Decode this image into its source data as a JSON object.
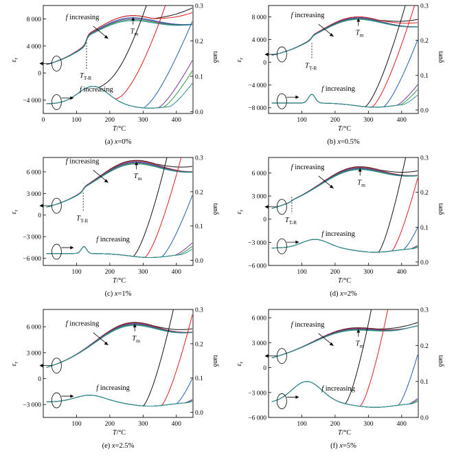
{
  "figure": {
    "y_left_symbol": "ε",
    "y_left_subscript": "r",
    "y_right_label": "tanδ",
    "x_label_var": "T",
    "x_label_unit": "/°C",
    "increasing_text": "increasing",
    "increasing_var": "f",
    "tm_main": "T",
    "tm_sub": "m",
    "ttr_main": "T",
    "ttr_sub": "T-R"
  },
  "chart_data": [
    {
      "type": "line",
      "panel_label": "(a) ",
      "caption_var": "x",
      "caption_value": "=0%",
      "xlim": [
        0,
        450
      ],
      "xticks": [
        0,
        100,
        200,
        300,
        400
      ],
      "xtick_labels": [
        "0",
        "100",
        "200",
        "300",
        "400"
      ],
      "ylim_left": [
        -6000,
        10000
      ],
      "yticks_left": [
        -4000,
        0,
        4000,
        8000
      ],
      "ytick_labels_left": [
        "−4 000",
        "0",
        "4 000",
        "8 000"
      ],
      "ylim_right": [
        -0.005,
        0.3
      ],
      "yticks_right": [
        0.0,
        0.1,
        0.2,
        0.3
      ],
      "ytick_labels_right": [
        "0.0",
        "0.1",
        "0.2",
        "0.3"
      ],
      "t_tr": 130,
      "t_m": 270,
      "eps_base": 1000,
      "eps_step": 2000,
      "eps_peak": 8500,
      "eps_end": 5000,
      "tan_base": 0.022,
      "tan_bump": 0.05,
      "tan_bump_at": 150,
      "tan_bump_w": 45,
      "eps_series": [
        {
          "name": "",
          "color": "#111111",
          "peak_shift": 0,
          "tail_rise": 600
        },
        {
          "name": "",
          "color": "#e31a1c",
          "peak_shift": 0,
          "tail_rise": 420
        },
        {
          "name": "",
          "color": "#1f5fae",
          "peak_shift": -300,
          "tail_rise": 0
        },
        {
          "name": "",
          "color": "#7b2f9b",
          "peak_shift": -450,
          "tail_rise": 0
        },
        {
          "name": "",
          "color": "#2e9a3f",
          "peak_shift": -600,
          "tail_rise": 0
        },
        {
          "name": "",
          "color": "#2a8f96",
          "peak_shift": -750,
          "tail_rise": 0
        }
      ],
      "tan_series": [
        {
          "name": "",
          "color": "#111111",
          "rise_at": 165,
          "rise_rate": 0.0028
        },
        {
          "name": "",
          "color": "#e31a1c",
          "rise_at": 215,
          "rise_rate": 0.0026
        },
        {
          "name": "",
          "color": "#1f5fae",
          "rise_at": 300,
          "rise_rate": 0.0022
        },
        {
          "name": "",
          "color": "#7b2f9b",
          "rise_at": 345,
          "rise_rate": 0.0019
        },
        {
          "name": "",
          "color": "#2e9a3f",
          "rise_at": 360,
          "rise_rate": 0.0018
        },
        {
          "name": "",
          "color": "#2a8f96",
          "rise_at": 380,
          "rise_rate": 0.0016
        }
      ]
    },
    {
      "type": "line",
      "panel_label": "(b) ",
      "caption_var": "x",
      "caption_value": "=0.5%",
      "xlim": [
        0,
        450
      ],
      "xticks": [
        100,
        200,
        300,
        400
      ],
      "xtick_labels": [
        "100",
        "200",
        "300",
        "400"
      ],
      "ylim_left": [
        -9000,
        10000
      ],
      "yticks_left": [
        -8000,
        -4000,
        0,
        4000,
        8000
      ],
      "ytick_labels_left": [
        "−8 000",
        "−4 000",
        "0",
        "4 000",
        "8 000"
      ],
      "ylim_right": [
        -0.01,
        0.3
      ],
      "yticks_right": [
        0.0,
        0.1,
        0.2,
        0.3
      ],
      "ytick_labels_right": [
        "0.0",
        "0.1",
        "0.2",
        "0.3"
      ],
      "t_tr": 130,
      "t_m": 270,
      "eps_base": 1000,
      "eps_step": 900,
      "eps_peak": 8000,
      "eps_end": 3300,
      "tan_base": 0.02,
      "tan_bump": 0.025,
      "tan_bump_at": 130,
      "tan_bump_w": 10,
      "eps_series": [
        {
          "name": "",
          "color": "#111111",
          "peak_shift": 0,
          "tail_rise": 320
        },
        {
          "name": "",
          "color": "#e31a1c",
          "peak_shift": 0,
          "tail_rise": 180
        },
        {
          "name": "",
          "color": "#1f5fae",
          "peak_shift": -150,
          "tail_rise": 0
        },
        {
          "name": "",
          "color": "#7b2f9b",
          "peak_shift": -250,
          "tail_rise": 0
        },
        {
          "name": "",
          "color": "#2e9a3f",
          "peak_shift": -350,
          "tail_rise": 0
        },
        {
          "name": "",
          "color": "#2a8f96",
          "peak_shift": -450,
          "tail_rise": 0
        }
      ],
      "tan_series": [
        {
          "name": "",
          "color": "#111111",
          "rise_at": 290,
          "rise_rate": 0.0035
        },
        {
          "name": "",
          "color": "#e31a1c",
          "rise_at": 310,
          "rise_rate": 0.0032
        },
        {
          "name": "",
          "color": "#1f5fae",
          "rise_at": 345,
          "rise_rate": 0.0028
        },
        {
          "name": "",
          "color": "#7b2f9b",
          "rise_at": 385,
          "rise_rate": 0.0016
        },
        {
          "name": "",
          "color": "#2e9a3f",
          "rise_at": 395,
          "rise_rate": 0.0015
        },
        {
          "name": "",
          "color": "#2a8f96",
          "rise_at": 405,
          "rise_rate": 0.0012
        }
      ]
    },
    {
      "type": "line",
      "panel_label": "(c) ",
      "caption_var": "x",
      "caption_value": "=1%",
      "xlim": [
        0,
        450
      ],
      "xticks": [
        100,
        200,
        300,
        400
      ],
      "xtick_labels": [
        "100",
        "200",
        "300",
        "400"
      ],
      "ylim_left": [
        -7000,
        8000
      ],
      "yticks_left": [
        -6000,
        -3000,
        0,
        3000,
        6000
      ],
      "ytick_labels_left": [
        "−6 000",
        "−3 000",
        "0",
        "3 000",
        "6 000"
      ],
      "ylim_right": [
        -0.015,
        0.3
      ],
      "yticks_right": [
        0.0,
        0.1,
        0.2,
        0.3
      ],
      "ytick_labels_right": [
        "0.0",
        "0.1",
        "0.2",
        "0.3"
      ],
      "t_tr": 120,
      "t_m": 280,
      "eps_base": 900,
      "eps_step": 700,
      "eps_peak": 7600,
      "eps_end": 4000,
      "tan_base": 0.02,
      "tan_bump": 0.02,
      "tan_bump_at": 122,
      "tan_bump_w": 8,
      "eps_series": [
        {
          "name": "",
          "color": "#111111",
          "peak_shift": 0,
          "tail_rise": 200
        },
        {
          "name": "",
          "color": "#e31a1c",
          "peak_shift": -80,
          "tail_rise": 0
        },
        {
          "name": "",
          "color": "#1f5fae",
          "peak_shift": -200,
          "tail_rise": 0
        },
        {
          "name": "",
          "color": "#7b2f9b",
          "peak_shift": -300,
          "tail_rise": 0
        },
        {
          "name": "",
          "color": "#2e9a3f",
          "peak_shift": -400,
          "tail_rise": 0
        },
        {
          "name": "",
          "color": "#2a8f96",
          "peak_shift": -500,
          "tail_rise": 0
        }
      ],
      "tan_series": [
        {
          "name": "",
          "color": "#111111",
          "rise_at": 270,
          "rise_rate": 0.0045
        },
        {
          "name": "",
          "color": "#e31a1c",
          "rise_at": 305,
          "rise_rate": 0.004
        },
        {
          "name": "",
          "color": "#1f5fae",
          "rise_at": 355,
          "rise_rate": 0.003
        },
        {
          "name": "",
          "color": "#7b2f9b",
          "rise_at": 395,
          "rise_rate": 0.0012
        },
        {
          "name": "",
          "color": "#2e9a3f",
          "rise_at": 405,
          "rise_rate": 0.0011
        },
        {
          "name": "",
          "color": "#2a8f96",
          "rise_at": 415,
          "rise_rate": 0.001
        }
      ]
    },
    {
      "type": "line",
      "panel_label": "(d) ",
      "caption_var": "x",
      "caption_value": "=2%",
      "xlim": [
        0,
        450
      ],
      "xticks": [
        100,
        200,
        300,
        400
      ],
      "xtick_labels": [
        "100",
        "200",
        "300",
        "400"
      ],
      "ylim_left": [
        -6000,
        8000
      ],
      "yticks_left": [
        -6000,
        -3000,
        0,
        3000,
        6000
      ],
      "ytick_labels_left": [
        "−6 000",
        "−3 000",
        "0",
        "3 000",
        "6 000"
      ],
      "ylim_right": [
        -0.01,
        0.3
      ],
      "yticks_right": [
        0.0,
        0.1,
        0.2,
        0.3
      ],
      "ytick_labels_right": [
        "0.0",
        "0.1",
        "0.2",
        "0.3"
      ],
      "t_tr": 70,
      "t_m": 275,
      "eps_base": 1200,
      "eps_step": 200,
      "eps_peak": 6800,
      "eps_end": 3200,
      "tan_base": 0.04,
      "tan_bump": 0.025,
      "tan_bump_at": 140,
      "tan_bump_w": 40,
      "eps_series": [
        {
          "name": "",
          "color": "#111111",
          "peak_shift": 0,
          "tail_rise": 150
        },
        {
          "name": "",
          "color": "#e31a1c",
          "peak_shift": -60,
          "tail_rise": 0
        },
        {
          "name": "",
          "color": "#1f5fae",
          "peak_shift": -150,
          "tail_rise": 0
        },
        {
          "name": "",
          "color": "#7b2f9b",
          "peak_shift": -230,
          "tail_rise": 0
        },
        {
          "name": "",
          "color": "#2e9a3f",
          "peak_shift": -300,
          "tail_rise": 0
        },
        {
          "name": "",
          "color": "#2a8f96",
          "peak_shift": -380,
          "tail_rise": 0
        }
      ],
      "tan_series": [
        {
          "name": "",
          "color": "#111111",
          "rise_at": 330,
          "rise_rate": 0.0055
        },
        {
          "name": "",
          "color": "#e31a1c",
          "rise_at": 370,
          "rise_rate": 0.0045
        },
        {
          "name": "",
          "color": "#1f5fae",
          "rise_at": 405,
          "rise_rate": 0.003
        },
        {
          "name": "",
          "color": "#7b2f9b",
          "rise_at": 425,
          "rise_rate": 0.001
        },
        {
          "name": "",
          "color": "#2e9a3f",
          "rise_at": 430,
          "rise_rate": 0.0009
        },
        {
          "name": "",
          "color": "#2a8f96",
          "rise_at": 435,
          "rise_rate": 0.0008
        }
      ]
    },
    {
      "type": "line",
      "panel_label": "(e) ",
      "caption_var": "x",
      "caption_value": "=2.5%",
      "xlim": [
        0,
        450
      ],
      "xticks": [
        100,
        200,
        300,
        400
      ],
      "xtick_labels": [
        "100",
        "200",
        "300",
        "400"
      ],
      "ylim_left": [
        -4500,
        8000
      ],
      "yticks_left": [
        -3000,
        0,
        3000,
        6000
      ],
      "ytick_labels_left": [
        "−3 000",
        "0",
        "3 000",
        "6 000"
      ],
      "ylim_right": [
        -0.015,
        0.3
      ],
      "yticks_right": [
        0.0,
        0.1,
        0.2,
        0.3
      ],
      "ytick_labels_right": [
        "0.0",
        "0.1",
        "0.2",
        "0.3"
      ],
      "t_tr": -1,
      "t_m": 275,
      "eps_base": 1100,
      "eps_step": 0,
      "eps_peak": 6500,
      "eps_end": 3000,
      "tan_base": 0.03,
      "tan_bump": 0.02,
      "tan_bump_at": 140,
      "tan_bump_w": 45,
      "eps_series": [
        {
          "name": "",
          "color": "#111111",
          "peak_shift": 0,
          "tail_rise": 100
        },
        {
          "name": "",
          "color": "#e31a1c",
          "peak_shift": -60,
          "tail_rise": 0
        },
        {
          "name": "",
          "color": "#1f5fae",
          "peak_shift": -140,
          "tail_rise": 0
        },
        {
          "name": "",
          "color": "#7b2f9b",
          "peak_shift": -210,
          "tail_rise": 0
        },
        {
          "name": "",
          "color": "#2e9a3f",
          "peak_shift": -280,
          "tail_rise": 0
        },
        {
          "name": "",
          "color": "#2a8f96",
          "peak_shift": -350,
          "tail_rise": 0
        }
      ],
      "tan_series": [
        {
          "name": "",
          "color": "#111111",
          "rise_at": 300,
          "rise_rate": 0.005
        },
        {
          "name": "",
          "color": "#e31a1c",
          "rise_at": 355,
          "rise_rate": 0.0045
        },
        {
          "name": "",
          "color": "#1f5fae",
          "rise_at": 400,
          "rise_rate": 0.003
        },
        {
          "name": "",
          "color": "#7b2f9b",
          "rise_at": 425,
          "rise_rate": 0.001
        },
        {
          "name": "",
          "color": "#2e9a3f",
          "rise_at": 430,
          "rise_rate": 0.0009
        },
        {
          "name": "",
          "color": "#2a8f96",
          "rise_at": 435,
          "rise_rate": 0.0008
        }
      ]
    },
    {
      "type": "line",
      "panel_label": "(f) ",
      "caption_var": "x",
      "caption_value": "=5%",
      "xlim": [
        0,
        450
      ],
      "xticks": [
        100,
        200,
        300,
        400
      ],
      "xtick_labels": [
        "100",
        "200",
        "300",
        "400"
      ],
      "ylim_left": [
        -6000,
        7000
      ],
      "yticks_left": [
        -6000,
        -3000,
        0,
        3000,
        6000
      ],
      "ytick_labels_left": [
        "−6 000",
        "−3 000",
        "0",
        "3 000",
        "6 000"
      ],
      "ylim_right": [
        0.0,
        0.3
      ],
      "yticks_right": [
        0.0,
        0.1,
        0.2,
        0.3
      ],
      "ytick_labels_right": [
        "0.0",
        "0.1",
        "0.2",
        "0.3"
      ],
      "t_tr": -1,
      "t_m": 270,
      "eps_base": 1000,
      "eps_step": 0,
      "eps_peak": 4800,
      "eps_end": 3500,
      "tan_base": 0.04,
      "tan_bump": 0.06,
      "tan_bump_at": 115,
      "tan_bump_w": 45,
      "eps_series": [
        {
          "name": "",
          "color": "#111111",
          "peak_shift": 0,
          "tail_rise": 100
        },
        {
          "name": "",
          "color": "#e31a1c",
          "peak_shift": -50,
          "tail_rise": 0
        },
        {
          "name": "",
          "color": "#1f5fae",
          "peak_shift": -120,
          "tail_rise": 0
        },
        {
          "name": "",
          "color": "#7b2f9b",
          "peak_shift": -180,
          "tail_rise": 0
        },
        {
          "name": "",
          "color": "#2e9a3f",
          "peak_shift": -240,
          "tail_rise": 0
        },
        {
          "name": "",
          "color": "#2a8f96",
          "peak_shift": -300,
          "tail_rise": 0
        }
      ],
      "tan_series": [
        {
          "name": "",
          "color": "#111111",
          "rise_at": 230,
          "rise_rate": 0.006
        },
        {
          "name": "",
          "color": "#e31a1c",
          "rise_at": 275,
          "rise_rate": 0.0055
        },
        {
          "name": "",
          "color": "#1f5fae",
          "rise_at": 390,
          "rise_rate": 0.0045
        },
        {
          "name": "",
          "color": "#7b2f9b",
          "rise_at": 420,
          "rise_rate": 0.0012
        },
        {
          "name": "",
          "color": "#2e9a3f",
          "rise_at": 425,
          "rise_rate": 0.0011
        },
        {
          "name": "",
          "color": "#2a8f96",
          "rise_at": 430,
          "rise_rate": 0.001
        }
      ]
    }
  ]
}
